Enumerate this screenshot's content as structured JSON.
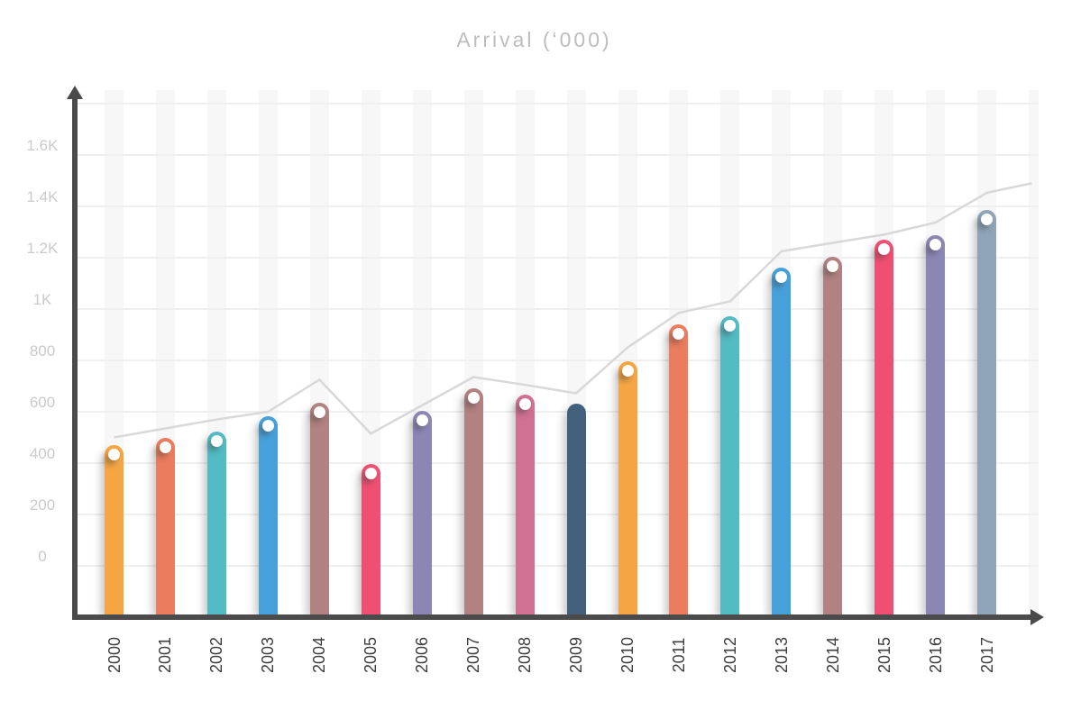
{
  "title": "Arrival (‘000)",
  "chart_data": {
    "type": "bar",
    "title": "Arrival (‘000)",
    "xlabel": "",
    "ylabel": "",
    "categories": [
      "2000",
      "2001",
      "2002",
      "2003",
      "2004",
      "2005",
      "2006",
      "2007",
      "2008",
      "2009",
      "2010",
      "2011",
      "2012",
      "2013",
      "2014",
      "2015",
      "2016",
      "2017"
    ],
    "series": [
      {
        "name": "arrivals-bars",
        "type": "bar",
        "values": [
          435,
          460,
          485,
          545,
          600,
          360,
          565,
          655,
          630,
          595,
          760,
          905,
          935,
          1125,
          1165,
          1235,
          1250,
          1350
        ]
      },
      {
        "name": "trend-line",
        "type": "line",
        "values": [
          500,
          535,
          570,
          600,
          725,
          515,
          625,
          735,
          705,
          672,
          850,
          985,
          1030,
          1225,
          1258,
          1290,
          1337,
          1453
        ],
        "extends_past_last_category": true,
        "end_value": 1490
      }
    ],
    "bar_colors": [
      "#F5A543",
      "#EB7C5E",
      "#52BBC3",
      "#46A0D9",
      "#B28181",
      "#EF4F72",
      "#8C86B5",
      "#B28181",
      "#D07093",
      "#42607C",
      "#F5A543",
      "#EB7C5E",
      "#52BBC3",
      "#46A0D9",
      "#B28181",
      "#EF4F72",
      "#8C86B5",
      "#90A4B8"
    ],
    "bar_has_marker": [
      true,
      true,
      true,
      true,
      true,
      true,
      true,
      true,
      true,
      false,
      true,
      true,
      true,
      true,
      true,
      true,
      true,
      true
    ],
    "y_ticks": [
      "0",
      "200",
      "400",
      "600",
      "800",
      "1K",
      "1.2K",
      "1.4K",
      "1.6K"
    ],
    "y_axis_range": [
      0,
      1800
    ],
    "grid_step": 200,
    "grid_on": true,
    "background_stripes": true,
    "legend_position": "none"
  },
  "colors": {
    "background": "#FFFFFF",
    "stripe": "#F7F7F7",
    "gridline": "#EFEFEF",
    "axis": "#4B4B4B",
    "trend_line": "#D8D8D8",
    "title_text": "#BDBDBD",
    "y_tick_text": "#CACACA",
    "x_tick_text": "#3D3D3D",
    "marker_fill": "#FFFFFF"
  }
}
